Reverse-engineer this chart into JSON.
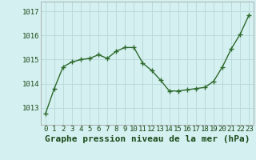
{
  "x": [
    0,
    1,
    2,
    3,
    4,
    5,
    6,
    7,
    8,
    9,
    10,
    11,
    12,
    13,
    14,
    15,
    16,
    17,
    18,
    19,
    20,
    21,
    22,
    23
  ],
  "y": [
    1012.75,
    1013.8,
    1014.7,
    1014.9,
    1015.0,
    1015.05,
    1015.2,
    1015.05,
    1015.35,
    1015.5,
    1015.5,
    1014.85,
    1014.55,
    1014.15,
    1013.7,
    1013.7,
    1013.75,
    1013.8,
    1013.85,
    1014.1,
    1014.7,
    1015.45,
    1016.05,
    1016.85
  ],
  "line_color": "#2d6a2d",
  "marker": "+",
  "marker_size": 5,
  "bg_color": "#d5f0f0",
  "grid_color": "#b8d8d8",
  "xlabel": "Graphe pression niveau de la mer (hPa)",
  "xlabel_fontsize": 8,
  "ylabel_ticks": [
    1013,
    1014,
    1015,
    1016,
    1017
  ],
  "ylim": [
    1012.3,
    1017.4
  ],
  "xlim": [
    -0.5,
    23.5
  ],
  "tick_fontsize": 6.5,
  "tick_color": "#1a4a1a",
  "spine_color": "#999999",
  "linewidth": 1.0
}
